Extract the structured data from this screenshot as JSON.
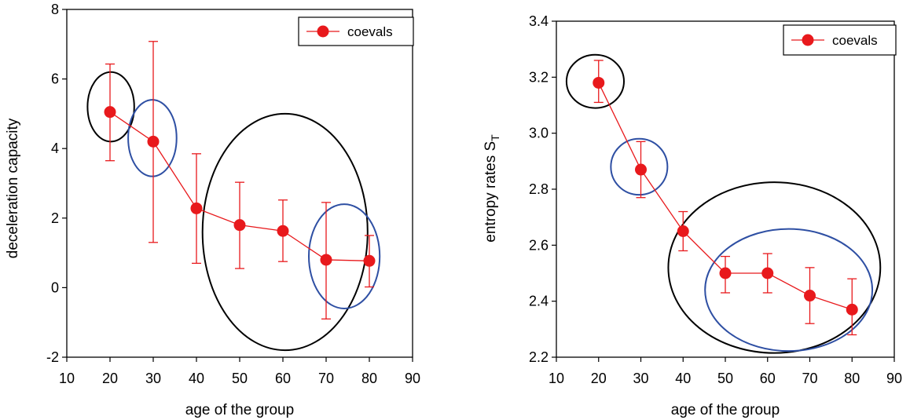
{
  "colors": {
    "series": "#e8191c",
    "ring_black": "#000000",
    "ring_blue": "#2e4fa3"
  },
  "chart_data": [
    {
      "type": "scatter",
      "title": "",
      "xlabel": "age of  the group",
      "ylabel": "deceleration capacity",
      "xlim": [
        10,
        90
      ],
      "ylim": [
        -2,
        8
      ],
      "xticks": [
        "10",
        "20",
        "30",
        "40",
        "50",
        "60",
        "70",
        "80",
        "90"
      ],
      "yticks": [
        "-2",
        "0",
        "2",
        "4",
        "6",
        "8"
      ],
      "legend": {
        "label": "coevals",
        "position": "top-right"
      },
      "series": [
        {
          "name": "coevals",
          "x": [
            20,
            30,
            40,
            50,
            60,
            70,
            80
          ],
          "y": [
            5.05,
            4.2,
            2.28,
            1.8,
            1.63,
            0.8,
            0.77
          ],
          "err_low": [
            3.65,
            1.3,
            0.7,
            0.55,
            0.75,
            -0.9,
            0.02
          ],
          "err_high": [
            6.43,
            7.08,
            3.85,
            3.03,
            2.52,
            2.45,
            1.5
          ]
        }
      ],
      "annotations": [
        {
          "shape": "ellipse",
          "color": "black",
          "cx": 20.2,
          "cy": 5.2,
          "rx": 5.4,
          "ry": 1.0
        },
        {
          "shape": "ellipse",
          "color": "blue",
          "cx": 29.8,
          "cy": 4.3,
          "rx": 5.6,
          "ry": 1.1
        },
        {
          "shape": "ellipse",
          "color": "black",
          "cx": 60.5,
          "cy": 1.6,
          "rx": 19.1,
          "ry": 3.4
        },
        {
          "shape": "ellipse",
          "color": "blue",
          "cx": 74.2,
          "cy": 0.9,
          "rx": 8.2,
          "ry": 1.5
        }
      ]
    },
    {
      "type": "scatter",
      "title": "",
      "xlabel": "age of  the group",
      "ylabel": "entropy rates S",
      "ylabel_subscript": "T",
      "xlim": [
        10,
        90
      ],
      "ylim": [
        2.2,
        3.4
      ],
      "xticks": [
        "10",
        "20",
        "30",
        "40",
        "50",
        "60",
        "70",
        "80",
        "90"
      ],
      "yticks": [
        "2.2",
        "2.4",
        "2.6",
        "2.8",
        "3.0",
        "3.2",
        "3.4"
      ],
      "legend": {
        "label": "coevals",
        "position": "top-right"
      },
      "series": [
        {
          "name": "coevals",
          "x": [
            20,
            30,
            40,
            50,
            60,
            70,
            80
          ],
          "y": [
            3.18,
            2.87,
            2.65,
            2.5,
            2.5,
            2.42,
            2.37
          ],
          "err_low": [
            3.11,
            2.77,
            2.58,
            2.43,
            2.43,
            2.32,
            2.28
          ],
          "err_high": [
            3.26,
            2.97,
            2.72,
            2.56,
            2.57,
            2.52,
            2.48
          ]
        }
      ],
      "annotations": [
        {
          "shape": "ellipse",
          "color": "black",
          "cx": 19.2,
          "cy": 3.185,
          "rx": 6.8,
          "ry": 0.095
        },
        {
          "shape": "ellipse",
          "color": "blue",
          "cx": 29.6,
          "cy": 2.88,
          "rx": 6.7,
          "ry": 0.1
        },
        {
          "shape": "ellipse",
          "color": "black",
          "cx": 61.6,
          "cy": 2.52,
          "rx": 25.1,
          "ry": 0.305
        },
        {
          "shape": "ellipse",
          "color": "blue",
          "cx": 65.0,
          "cy": 2.44,
          "rx": 19.8,
          "ry": 0.218
        }
      ]
    }
  ]
}
